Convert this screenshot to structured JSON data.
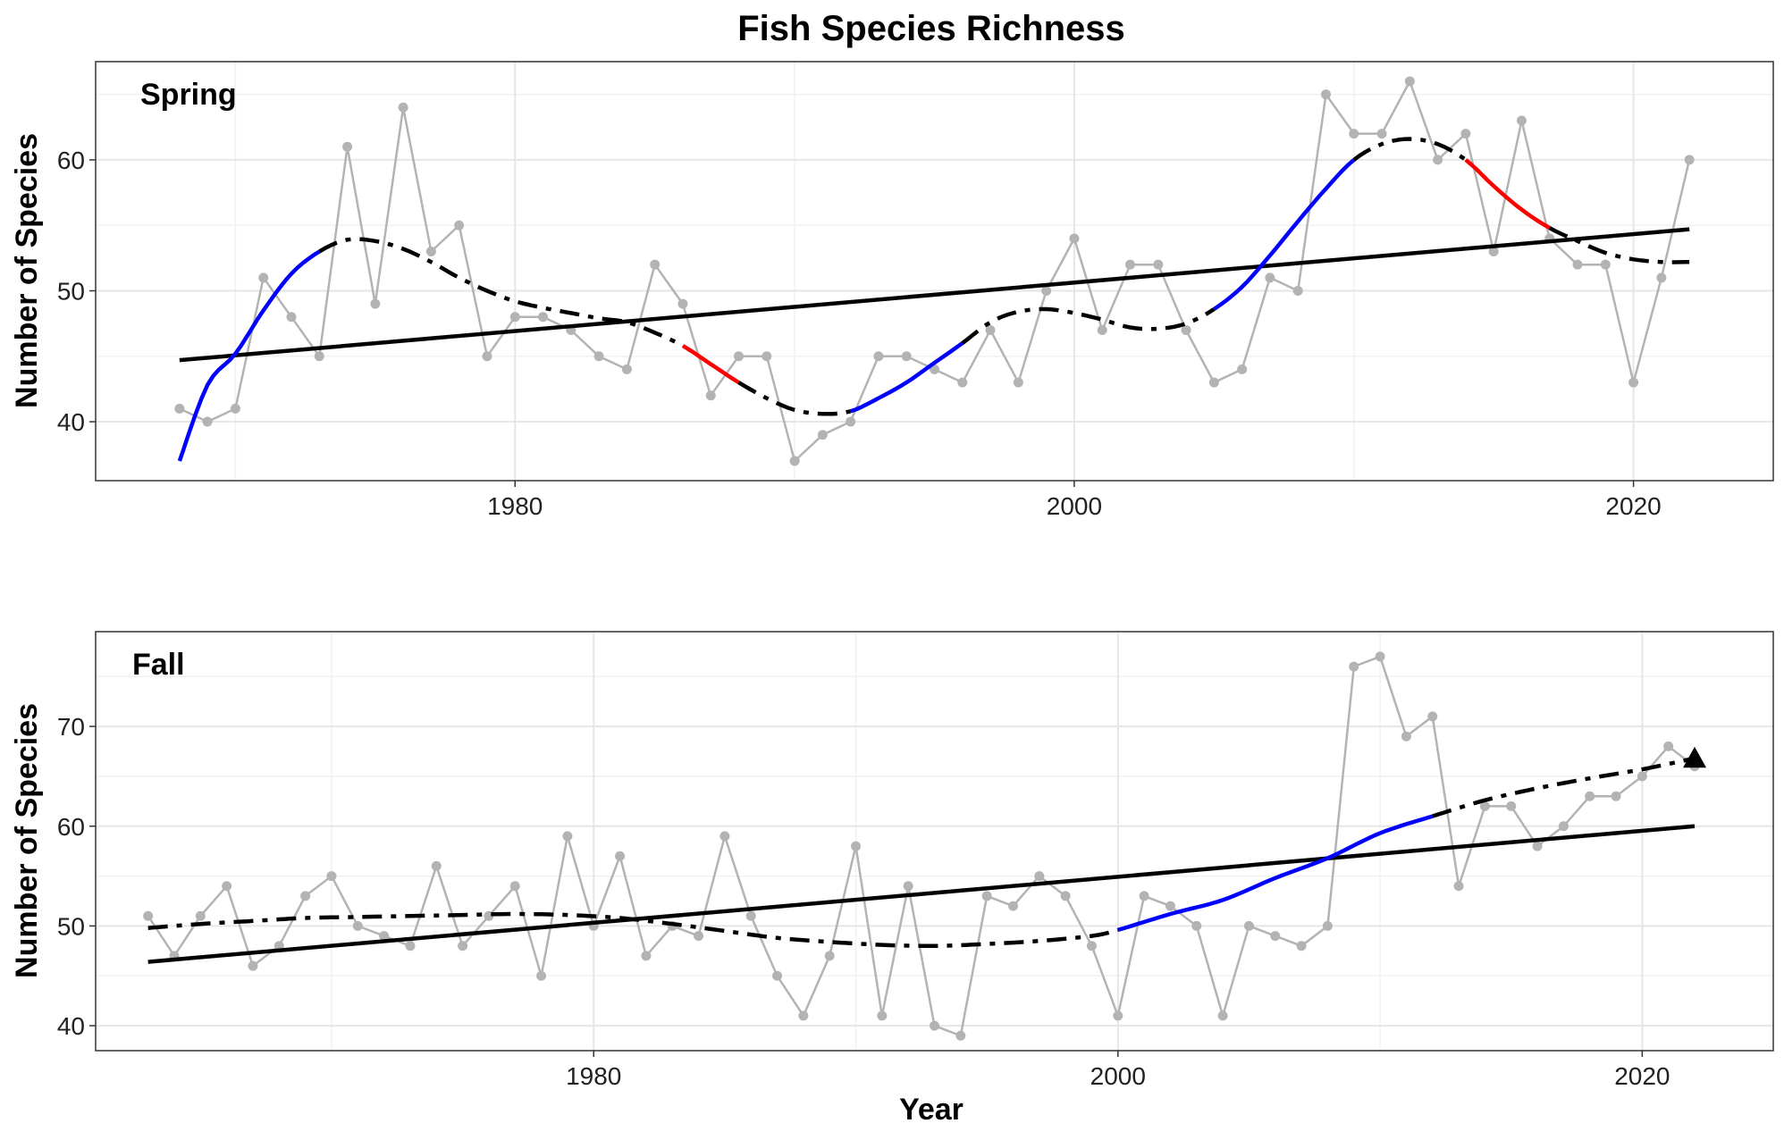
{
  "chart_data": {
    "type": "line",
    "title": "Fish Species Richness",
    "xlabel": "Year",
    "colors": {
      "observed": "#b3b3b3",
      "trend": "#000000",
      "increasing": "#0000ff",
      "decreasing": "#ff0000"
    },
    "panels": [
      {
        "label": "Spring",
        "ylabel": "Number of Species",
        "xlim": [
          1965,
          2025
        ],
        "ylim": [
          35.5,
          67.5
        ],
        "x_ticks": [
          1980,
          2000,
          2020
        ],
        "y_ticks": [
          40,
          50,
          60
        ],
        "observed": {
          "x": [
            1968,
            1969,
            1970,
            1971,
            1972,
            1973,
            1974,
            1975,
            1976,
            1977,
            1978,
            1979,
            1980,
            1981,
            1982,
            1983,
            1984,
            1985,
            1986,
            1987,
            1988,
            1989,
            1990,
            1991,
            1992,
            1993,
            1994,
            1995,
            1996,
            1997,
            1998,
            1999,
            2000,
            2001,
            2002,
            2003,
            2004,
            2005,
            2006,
            2007,
            2008,
            2009,
            2010,
            2011,
            2012,
            2013,
            2014,
            2015,
            2016,
            2017,
            2018,
            2019,
            2020,
            2021,
            2022
          ],
          "y": [
            41,
            40,
            41,
            51,
            48,
            45,
            61,
            49,
            64,
            53,
            55,
            45,
            48,
            48,
            47,
            45,
            44,
            52,
            49,
            42,
            45,
            45,
            37,
            39,
            40,
            45,
            45,
            44,
            43,
            47,
            43,
            50,
            54,
            47,
            52,
            52,
            47,
            43,
            44,
            51,
            50,
            65,
            62,
            62,
            66,
            60,
            62,
            53,
            63,
            54,
            52,
            52,
            43,
            51,
            60
          ]
        },
        "linear_trend": {
          "x": [
            1968,
            2022
          ],
          "y": [
            44.7,
            54.7
          ]
        },
        "smooth_trend": {
          "x": [
            1968,
            1969,
            1970,
            1971,
            1972,
            1973,
            1974,
            1975,
            1976,
            1977,
            1978,
            1979,
            1980,
            1981,
            1982,
            1983,
            1984,
            1985,
            1986,
            1987,
            1988,
            1989,
            1990,
            1991,
            1992,
            1993,
            1994,
            1995,
            1996,
            1997,
            1998,
            1999,
            2000,
            2001,
            2002,
            2003,
            2004,
            2005,
            2006,
            2007,
            2008,
            2009,
            2010,
            2011,
            2012,
            2013,
            2014,
            2015,
            2016,
            2017,
            2018,
            2019,
            2020,
            2021,
            2022
          ],
          "y": [
            37.0,
            42.8,
            45.2,
            48.5,
            51.3,
            53.0,
            53.9,
            53.8,
            53.2,
            52.2,
            51.0,
            50.0,
            49.2,
            48.7,
            48.3,
            47.9,
            47.6,
            46.8,
            45.8,
            44.4,
            43.0,
            41.8,
            40.9,
            40.6,
            40.8,
            41.8,
            43.0,
            44.5,
            46.0,
            47.6,
            48.4,
            48.6,
            48.3,
            47.8,
            47.2,
            47.1,
            47.5,
            48.6,
            50.3,
            52.7,
            55.3,
            57.8,
            60.0,
            61.2,
            61.6,
            61.2,
            60.0,
            58.0,
            56.2,
            54.8,
            53.8,
            52.9,
            52.4,
            52.2,
            52.2
          ]
        },
        "segments": [
          {
            "from": 1968,
            "to": 1973,
            "trend": "increasing"
          },
          {
            "from": 1973,
            "to": 1986,
            "trend": "none"
          },
          {
            "from": 1986,
            "to": 1988,
            "trend": "decreasing"
          },
          {
            "from": 1988,
            "to": 1992,
            "trend": "none"
          },
          {
            "from": 1992,
            "to": 1996,
            "trend": "increasing"
          },
          {
            "from": 1996,
            "to": 2005,
            "trend": "none"
          },
          {
            "from": 2005,
            "to": 2010,
            "trend": "increasing"
          },
          {
            "from": 2010,
            "to": 2014,
            "trend": "none"
          },
          {
            "from": 2014,
            "to": 2017,
            "trend": "decreasing"
          },
          {
            "from": 2017,
            "to": 2022,
            "trend": "none"
          }
        ]
      },
      {
        "label": "Fall",
        "ylabel": "Number of Species",
        "xlim": [
          1961,
          2025
        ],
        "ylim": [
          37.5,
          79.5
        ],
        "x_ticks": [
          1980,
          2000,
          2020
        ],
        "y_ticks": [
          40,
          50,
          60,
          70
        ],
        "observed": {
          "x": [
            1963,
            1964,
            1965,
            1966,
            1967,
            1968,
            1969,
            1970,
            1971,
            1972,
            1973,
            1974,
            1975,
            1976,
            1977,
            1978,
            1979,
            1980,
            1981,
            1982,
            1983,
            1984,
            1985,
            1986,
            1987,
            1988,
            1989,
            1990,
            1991,
            1992,
            1993,
            1994,
            1995,
            1996,
            1997,
            1998,
            1999,
            2000,
            2001,
            2002,
            2003,
            2004,
            2005,
            2006,
            2007,
            2008,
            2009,
            2010,
            2011,
            2012,
            2013,
            2014,
            2015,
            2016,
            2017,
            2018,
            2019,
            2020,
            2021,
            2022
          ],
          "y": [
            51,
            47,
            51,
            54,
            46,
            48,
            53,
            55,
            50,
            49,
            48,
            56,
            48,
            51,
            54,
            45,
            59,
            50,
            57,
            47,
            50,
            49,
            59,
            51,
            45,
            41,
            47,
            58,
            41,
            54,
            40,
            39,
            53,
            52,
            55,
            53,
            48,
            41,
            53,
            52,
            50,
            41,
            50,
            49,
            48,
            50,
            76,
            77,
            69,
            71,
            54,
            62,
            62,
            58,
            60,
            63,
            63,
            65,
            68,
            66
          ]
        },
        "linear_trend": {
          "x": [
            1963,
            2022
          ],
          "y": [
            46.4,
            60.0
          ]
        },
        "smooth_trend": {
          "x": [
            1963,
            1965,
            1967,
            1969,
            1971,
            1973,
            1975,
            1977,
            1979,
            1981,
            1983,
            1985,
            1987,
            1989,
            1991,
            1993,
            1995,
            1997,
            1999,
            2000,
            2002,
            2004,
            2006,
            2008,
            2010,
            2012,
            2014,
            2016,
            2018,
            2020,
            2022
          ],
          "y": [
            49.8,
            50.2,
            50.5,
            50.8,
            50.9,
            51.0,
            51.1,
            51.2,
            51.1,
            50.8,
            50.2,
            49.5,
            48.8,
            48.4,
            48.1,
            48.0,
            48.2,
            48.5,
            49.0,
            49.6,
            51.2,
            52.6,
            54.8,
            56.8,
            59.3,
            61.0,
            62.6,
            63.8,
            64.8,
            65.7,
            66.8
          ]
        },
        "segments": [
          {
            "from": 1963,
            "to": 2000,
            "trend": "none"
          },
          {
            "from": 2000,
            "to": 2012,
            "trend": "increasing"
          },
          {
            "from": 2012,
            "to": 2022,
            "trend": "none"
          }
        ]
      }
    ]
  }
}
